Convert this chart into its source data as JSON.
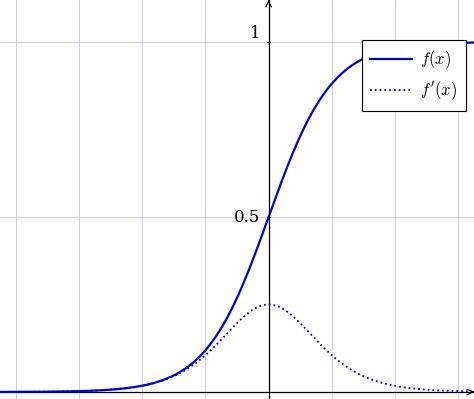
{
  "x_min": -8.5,
  "x_max": 6.5,
  "y_min": -0.02,
  "y_max": 1.12,
  "line_color": "#0000cc",
  "background_color": "#ffffff",
  "grid_color": "#c8c8dc",
  "y_ticks": [
    0.5,
    1.0
  ],
  "x_grid_positions": [
    -8,
    -6,
    -4,
    -2,
    0,
    2,
    4,
    6
  ],
  "legend_labels": [
    "$f(x)$",
    "$f'(x)$"
  ],
  "figsize": [
    4.74,
    3.99
  ],
  "dpi": 100
}
